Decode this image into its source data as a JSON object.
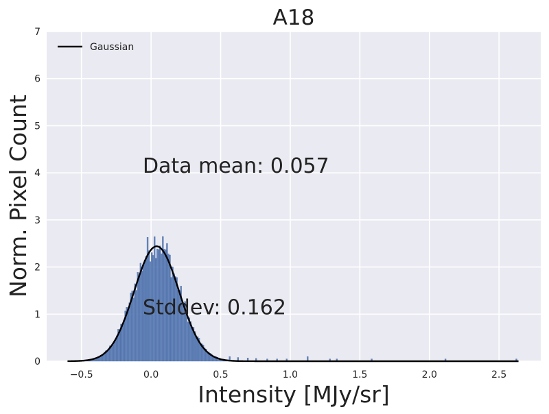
{
  "chart_data": {
    "type": "bar",
    "subtype": "histogram",
    "title": "A18",
    "xlabel": "Intensity [MJy/sr]",
    "ylabel": "Norm. Pixel Count",
    "xlim": [
      -0.75,
      2.8
    ],
    "ylim": [
      0,
      7
    ],
    "x_ticks": [
      -0.5,
      0.0,
      0.5,
      1.0,
      1.5,
      2.0,
      2.5
    ],
    "x_tick_labels": [
      "−0.5",
      "0.0",
      "0.5",
      "1.0",
      "1.5",
      "2.0",
      "2.5"
    ],
    "y_ticks": [
      0,
      1,
      2,
      3,
      4,
      5,
      6,
      7
    ],
    "y_tick_labels": [
      "0",
      "1",
      "2",
      "3",
      "4",
      "5",
      "6",
      "7"
    ],
    "grid": true,
    "legend": {
      "position": "top-left",
      "entries": [
        "Gaussian"
      ]
    },
    "histogram": {
      "bin_range": [
        -0.6,
        2.64
      ],
      "bin_width": 0.01,
      "color": "#4c72b0",
      "tail_spikes": [
        {
          "x": 0.56,
          "y": 0.1
        },
        {
          "x": 0.62,
          "y": 0.08
        },
        {
          "x": 0.69,
          "y": 0.07
        },
        {
          "x": 0.75,
          "y": 0.06
        },
        {
          "x": 0.83,
          "y": 0.05
        },
        {
          "x": 0.9,
          "y": 0.05
        },
        {
          "x": 0.97,
          "y": 0.05
        },
        {
          "x": 1.12,
          "y": 0.1
        },
        {
          "x": 1.28,
          "y": 0.05
        },
        {
          "x": 1.33,
          "y": 0.05
        },
        {
          "x": 1.58,
          "y": 0.05
        },
        {
          "x": 2.11,
          "y": 0.05
        },
        {
          "x": 2.62,
          "y": 0.05
        }
      ]
    },
    "gaussian": {
      "name": "Gaussian",
      "mean": 0.04,
      "stddev": 0.162,
      "peak": 2.44,
      "x_range": [
        -0.6,
        2.64
      ],
      "color": "#000000"
    },
    "annotations": [
      {
        "text": "Data mean: 0.057",
        "x": -0.06,
        "y": 4.0
      },
      {
        "text": "Stddev: 0.162",
        "x": -0.06,
        "y": 1.0
      }
    ],
    "colors": {
      "background": "#eaeaf2",
      "grid": "#ffffff",
      "bars": "#4c72b0",
      "curve": "#000000"
    }
  }
}
